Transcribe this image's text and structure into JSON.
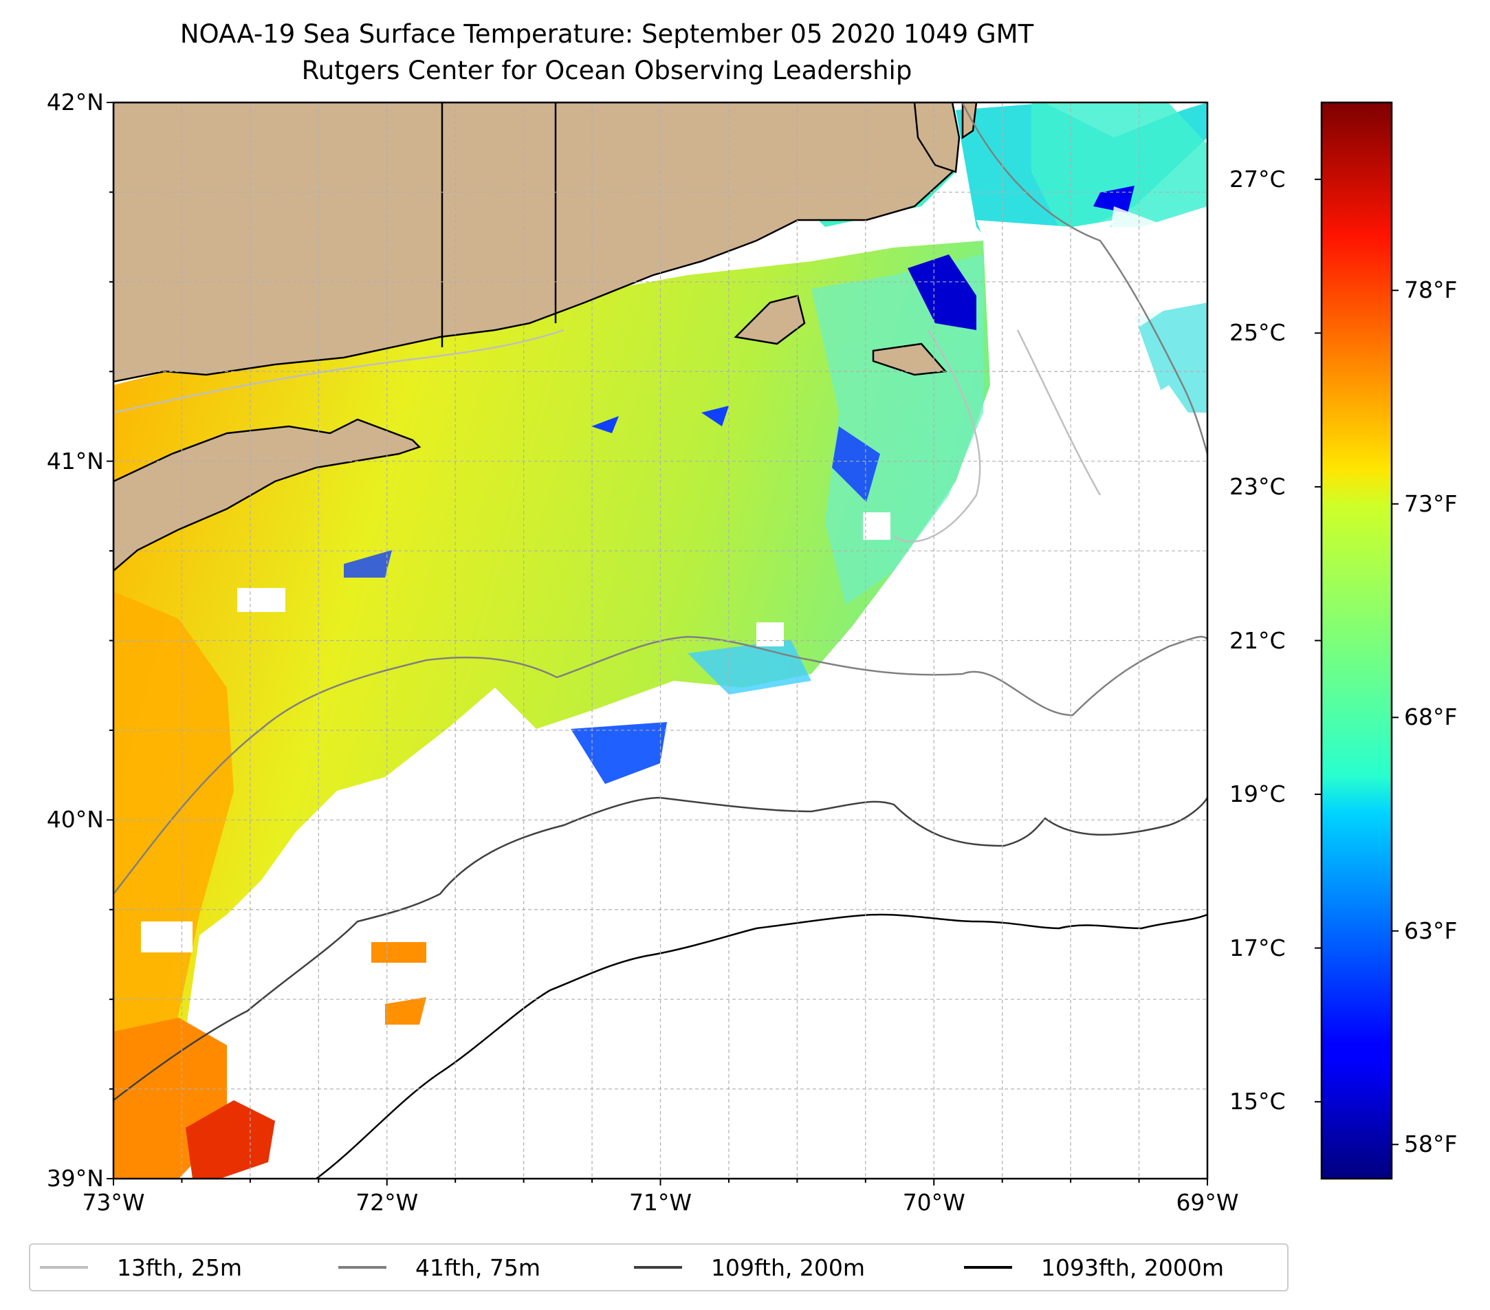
{
  "title": {
    "line1": "NOAA-19 Sea Surface Temperature: September 05 2020 1049 GMT",
    "line2": "Rutgers Center for Ocean Observing Leadership"
  },
  "map": {
    "extent": {
      "lon": [
        -73,
        -69
      ],
      "lat": [
        39,
        42
      ]
    },
    "lat_ticks": [
      {
        "value": 42,
        "label": "42°N"
      },
      {
        "value": 41,
        "label": "41°N"
      },
      {
        "value": 40,
        "label": "40°N"
      },
      {
        "value": 39,
        "label": "39°N"
      }
    ],
    "lon_ticks": [
      {
        "value": -73,
        "label": "73°W"
      },
      {
        "value": -72,
        "label": "72°W"
      },
      {
        "value": -71,
        "label": "71°W"
      },
      {
        "value": -70,
        "label": "70°W"
      },
      {
        "value": -69,
        "label": "69°W"
      }
    ],
    "gridlines": "dashed light gray every 0.25°",
    "land_color": "#cfb38f",
    "missing_data_color": "#ffffff"
  },
  "colorbar": {
    "colormap": "jet",
    "range_celsius": [
      14,
      28
    ],
    "celsius_ticks": [
      {
        "value": 27,
        "label": "27°C"
      },
      {
        "value": 25,
        "label": "25°C"
      },
      {
        "value": 23,
        "label": "23°C"
      },
      {
        "value": 21,
        "label": "21°C"
      },
      {
        "value": 19,
        "label": "19°C"
      },
      {
        "value": 17,
        "label": "17°C"
      },
      {
        "value": 15,
        "label": "15°C"
      }
    ],
    "fahrenheit_ticks": [
      {
        "value": 78,
        "label": "78°F"
      },
      {
        "value": 73,
        "label": "73°F"
      },
      {
        "value": 68,
        "label": "68°F"
      },
      {
        "value": 63,
        "label": "63°F"
      },
      {
        "value": 58,
        "label": "58°F"
      }
    ]
  },
  "legend": {
    "items": [
      {
        "label": "13fth, 25m",
        "color": "#bfbfbf"
      },
      {
        "label": "41fth, 75m",
        "color": "#808080"
      },
      {
        "label": "109fth, 200m",
        "color": "#404040"
      },
      {
        "label": "1093fth, 2000m",
        "color": "#000000"
      }
    ]
  }
}
